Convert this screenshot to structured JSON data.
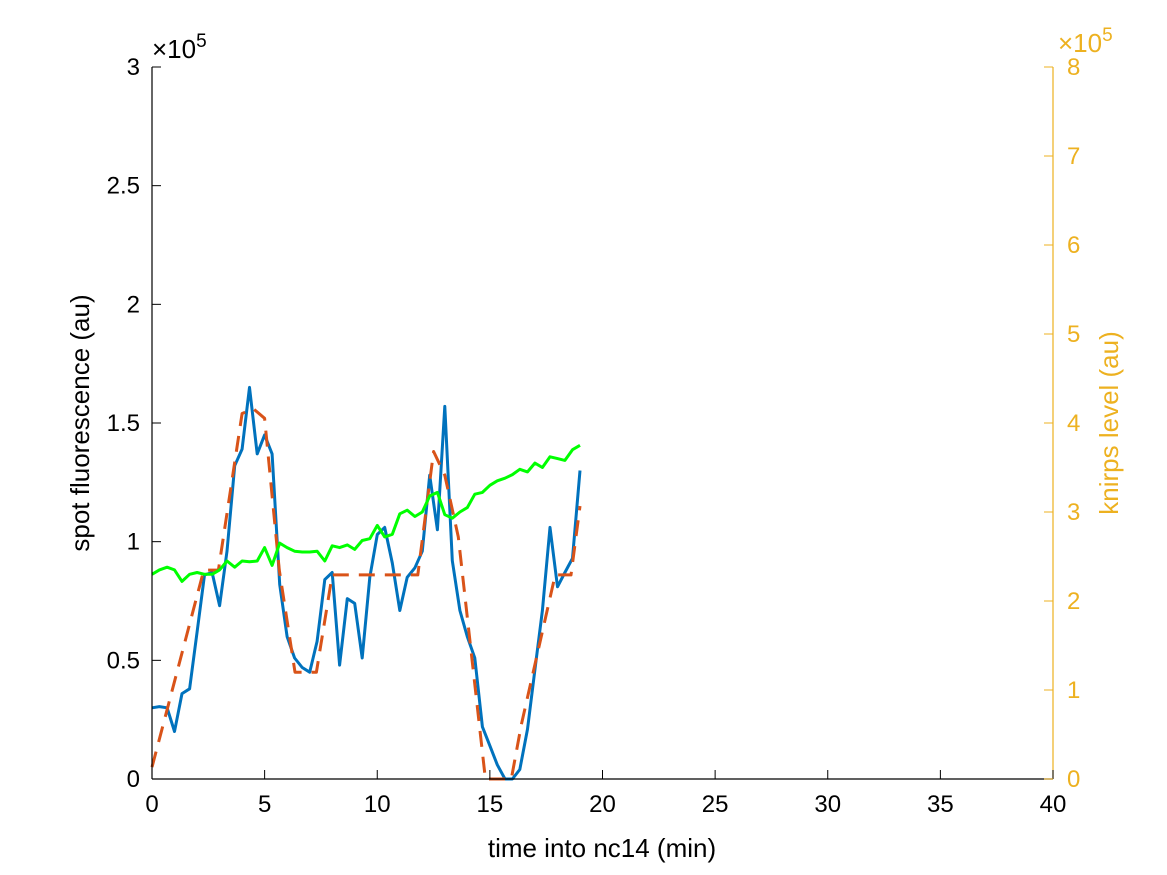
{
  "chart_data": {
    "type": "line",
    "xlabel": "time into nc14 (min)",
    "ylabel": "spot fluorescence (au)",
    "ylabel_right": "knirps level (au)",
    "xlim": [
      0,
      40
    ],
    "ylim": [
      0,
      3
    ],
    "ylim_right": [
      0,
      8
    ],
    "x_ticks": [
      "0",
      "5",
      "10",
      "15",
      "20",
      "25",
      "30",
      "35",
      "40"
    ],
    "y_ticks": [
      "0",
      "0.5",
      "1",
      "1.5",
      "2",
      "2.5",
      "3"
    ],
    "y_ticks_right": [
      "0",
      "1",
      "2",
      "3",
      "4",
      "5",
      "6",
      "7",
      "8"
    ],
    "y_exponent": "×10",
    "y_exponent_power": "5",
    "y_exponent_right": "×10",
    "y_exponent_right_power": "5",
    "grid": false,
    "colors": {
      "left_axis": "#000000",
      "right_axis": "#EDB120",
      "spot": "#0072BD",
      "fit": "#D95319",
      "knirps": "#00FF00"
    },
    "series": [
      {
        "axis": "left",
        "style": "solid",
        "color_key": "spot",
        "x": [
          0,
          0.33,
          0.67,
          1.0,
          1.33,
          1.67,
          2.0,
          2.33,
          2.67,
          3.0,
          3.33,
          3.67,
          4.0,
          4.33,
          4.67,
          5.0,
          5.33,
          5.67,
          6.0,
          6.33,
          6.67,
          7.0,
          7.33,
          7.67,
          8.0,
          8.33,
          8.67,
          9.0,
          9.33,
          9.67,
          10.0,
          10.33,
          10.67,
          11.0,
          11.33,
          11.67,
          12.0,
          12.33,
          12.67,
          13.0,
          13.33,
          13.67,
          14.0,
          14.33,
          14.67,
          15.0,
          15.33,
          15.67,
          16.0,
          16.33,
          16.67,
          17.0,
          17.33,
          17.67,
          18.0,
          18.33,
          18.67,
          19.0
        ],
        "values": [
          0.3,
          0.305,
          0.3,
          0.2,
          0.36,
          0.38,
          0.62,
          0.86,
          0.87,
          0.73,
          0.96,
          1.32,
          1.39,
          1.65,
          1.37,
          1.45,
          1.37,
          0.82,
          0.6,
          0.51,
          0.47,
          0.45,
          0.58,
          0.84,
          0.87,
          0.48,
          0.76,
          0.74,
          0.51,
          0.85,
          1.03,
          1.06,
          0.91,
          0.71,
          0.85,
          0.89,
          0.96,
          1.28,
          1.05,
          1.57,
          0.92,
          0.71,
          0.6,
          0.51,
          0.22,
          0.14,
          0.06,
          0.0,
          0.0,
          0.04,
          0.21,
          0.46,
          0.71,
          1.06,
          0.81,
          0.87,
          0.93,
          1.3
        ]
      },
      {
        "axis": "left",
        "style": "dashed",
        "color_key": "fit",
        "x": [
          0,
          2.3,
          2.95,
          4.0,
          4.5,
          5.0,
          5.65,
          6.35,
          7.3,
          8.0,
          9.0,
          10.0,
          11.0,
          11.8,
          12.5,
          13.0,
          13.6,
          14.8,
          15.95,
          16.4,
          17.9,
          18.6,
          19.0
        ],
        "values": [
          0.05,
          0.88,
          0.88,
          1.54,
          1.56,
          1.52,
          0.88,
          0.45,
          0.45,
          0.86,
          0.86,
          0.86,
          0.86,
          0.86,
          1.38,
          1.28,
          1.02,
          0.0,
          0.0,
          0.23,
          0.86,
          0.86,
          1.15
        ]
      },
      {
        "axis": "right",
        "style": "solid",
        "color_key": "knirps",
        "x": [
          0,
          0.33,
          0.67,
          1.0,
          1.33,
          1.67,
          2.0,
          2.33,
          2.67,
          3.0,
          3.33,
          3.67,
          4.0,
          4.33,
          4.67,
          5.0,
          5.33,
          5.67,
          6.0,
          6.33,
          6.67,
          7.0,
          7.33,
          7.67,
          8.0,
          8.33,
          8.67,
          9.0,
          9.33,
          9.67,
          10.0,
          10.33,
          10.67,
          11.0,
          11.33,
          11.67,
          12.0,
          12.33,
          12.67,
          13.0,
          13.33,
          13.67,
          14.0,
          14.33,
          14.67,
          15.0,
          15.33,
          15.67,
          16.0,
          16.33,
          16.67,
          17.0,
          17.33,
          17.67,
          18.0,
          18.33,
          18.67,
          19.0
        ],
        "values": [
          2.3,
          2.35,
          2.38,
          2.35,
          2.22,
          2.3,
          2.32,
          2.3,
          2.3,
          2.35,
          2.45,
          2.38,
          2.45,
          2.44,
          2.45,
          2.6,
          2.4,
          2.65,
          2.6,
          2.56,
          2.55,
          2.55,
          2.56,
          2.45,
          2.62,
          2.6,
          2.63,
          2.58,
          2.68,
          2.7,
          2.85,
          2.72,
          2.75,
          2.98,
          3.02,
          2.95,
          3.0,
          3.18,
          3.22,
          2.97,
          2.93,
          3.0,
          3.05,
          3.2,
          3.22,
          3.3,
          3.35,
          3.38,
          3.42,
          3.48,
          3.45,
          3.55,
          3.5,
          3.62,
          3.6,
          3.58,
          3.7,
          3.75
        ]
      }
    ]
  }
}
